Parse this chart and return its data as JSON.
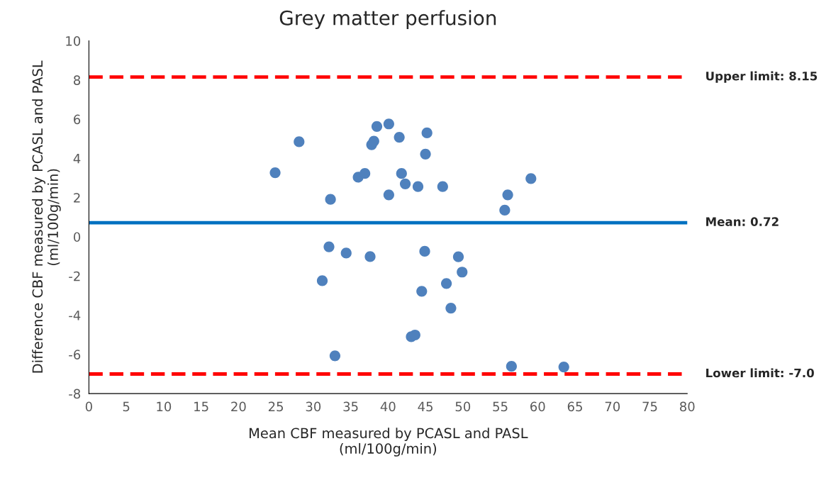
{
  "chart_data": {
    "type": "scatter",
    "title": "Grey matter perfusion",
    "xlabel": "Mean CBF measured by PCASL and PASL\n(ml/100g/min)",
    "ylabel": "Difference CBF measured by PCASL and PASL\n(ml/100g/min)",
    "xlim": [
      0,
      80
    ],
    "xticks": [
      0,
      5,
      10,
      15,
      20,
      25,
      30,
      35,
      40,
      45,
      50,
      55,
      60,
      65,
      70,
      75,
      80
    ],
    "ylim": [
      -8,
      10
    ],
    "yticks": [
      -8,
      -6,
      -4,
      -2,
      0,
      2,
      4,
      6,
      8,
      10
    ],
    "grid": false,
    "marker": "circle",
    "series": [
      {
        "color": "#4f81bd",
        "x": [
          24.9,
          28.1,
          32.3,
          36.0,
          36.9,
          37.8,
          38.1,
          38.5,
          40.1,
          40.1,
          41.5,
          41.8,
          42.3,
          44.0,
          45.2,
          45.0,
          47.3,
          59.1,
          56.0,
          55.6,
          32.1,
          34.4,
          37.6,
          31.2,
          32.9,
          43.1,
          43.6,
          44.9,
          44.5,
          49.4,
          49.9,
          47.8,
          48.4,
          56.5,
          63.5
        ],
        "values": [
          3.27,
          4.85,
          1.91,
          3.04,
          3.23,
          4.7,
          4.88,
          5.63,
          5.76,
          2.14,
          5.08,
          3.23,
          2.7,
          2.56,
          5.3,
          4.22,
          2.56,
          2.97,
          2.14,
          1.36,
          -0.51,
          -0.83,
          -1.01,
          -2.24,
          -6.07,
          -5.1,
          -5.01,
          -0.74,
          -2.78,
          -1.02,
          -1.8,
          -2.38,
          -3.64,
          -6.61,
          -6.64
        ]
      }
    ],
    "ref_lines": [
      {
        "axis": "y",
        "value": 8.15,
        "label": "Upper limit: 8.15",
        "color": "#ff0000",
        "line_style": "dashed"
      },
      {
        "axis": "y",
        "value": 0.72,
        "label": "Mean: 0.72",
        "color": "#0070c0",
        "line_style": "solid"
      },
      {
        "axis": "y",
        "value": -7.0,
        "label": "Lower limit: -7.0",
        "color": "#ff0000",
        "line_style": "dashed"
      }
    ]
  }
}
